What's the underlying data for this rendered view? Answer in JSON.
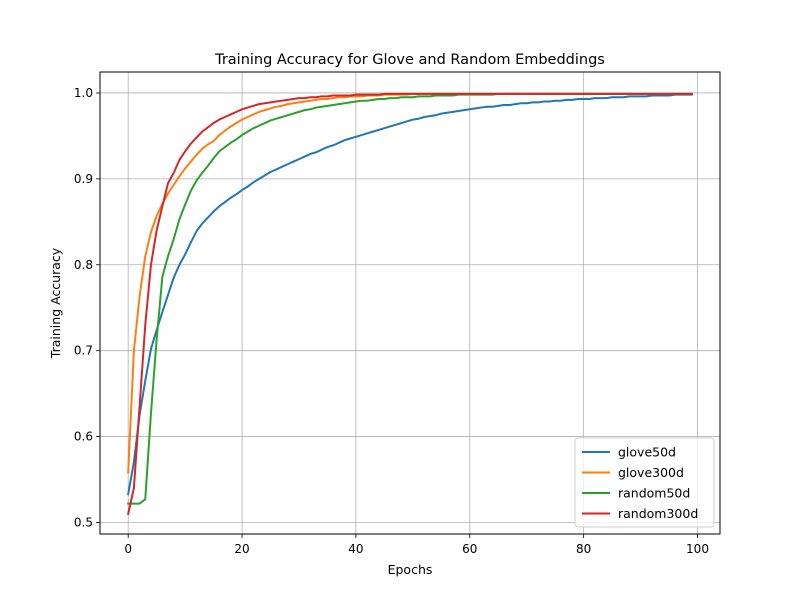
{
  "chart_data": {
    "type": "line",
    "title": "Training Accuracy for Glove and Random Embeddings",
    "xlabel": "Epochs",
    "ylabel": "Training Accuracy",
    "xlim": [
      -4.95,
      103.95
    ],
    "ylim": [
      0.4866,
      1.0244
    ],
    "xticks": [
      0,
      20,
      40,
      60,
      80,
      100
    ],
    "yticks": [
      0.5,
      0.6,
      0.7,
      0.8,
      0.9,
      1.0
    ],
    "xtick_labels": [
      "0",
      "20",
      "40",
      "60",
      "80",
      "100"
    ],
    "ytick_labels": [
      "0.5",
      "0.6",
      "0.7",
      "0.8",
      "0.9",
      "1.0"
    ],
    "grid": true,
    "legend_position": "lower-right",
    "x": [
      0,
      1,
      2,
      3,
      4,
      5,
      6,
      7,
      8,
      9,
      10,
      11,
      12,
      13,
      14,
      15,
      16,
      17,
      18,
      19,
      20,
      21,
      22,
      23,
      24,
      25,
      26,
      27,
      28,
      29,
      30,
      31,
      32,
      33,
      34,
      35,
      36,
      37,
      38,
      39,
      40,
      41,
      42,
      43,
      44,
      45,
      46,
      47,
      48,
      49,
      50,
      51,
      52,
      53,
      54,
      55,
      56,
      57,
      58,
      59,
      60,
      61,
      62,
      63,
      64,
      65,
      66,
      67,
      68,
      69,
      70,
      71,
      72,
      73,
      74,
      75,
      76,
      77,
      78,
      79,
      80,
      81,
      82,
      83,
      84,
      85,
      86,
      87,
      88,
      89,
      90,
      91,
      92,
      93,
      94,
      95,
      96,
      97,
      98,
      99
    ],
    "series": [
      {
        "name": "glove50d",
        "color": "#1f77b4",
        "values": [
          0.533,
          0.57,
          0.625,
          0.665,
          0.702,
          0.724,
          0.745,
          0.765,
          0.785,
          0.8,
          0.812,
          0.826,
          0.839,
          0.848,
          0.855,
          0.862,
          0.868,
          0.873,
          0.878,
          0.882,
          0.887,
          0.891,
          0.896,
          0.9,
          0.904,
          0.908,
          0.911,
          0.914,
          0.917,
          0.92,
          0.923,
          0.926,
          0.929,
          0.931,
          0.934,
          0.937,
          0.939,
          0.942,
          0.945,
          0.947,
          0.949,
          0.951,
          0.953,
          0.955,
          0.957,
          0.959,
          0.961,
          0.963,
          0.965,
          0.967,
          0.969,
          0.97,
          0.972,
          0.973,
          0.974,
          0.976,
          0.977,
          0.978,
          0.979,
          0.98,
          0.981,
          0.982,
          0.983,
          0.984,
          0.984,
          0.985,
          0.986,
          0.986,
          0.987,
          0.988,
          0.988,
          0.989,
          0.989,
          0.99,
          0.99,
          0.991,
          0.991,
          0.992,
          0.992,
          0.993,
          0.993,
          0.993,
          0.994,
          0.994,
          0.994,
          0.995,
          0.995,
          0.995,
          0.996,
          0.996,
          0.996,
          0.996,
          0.997,
          0.997,
          0.997,
          0.997,
          0.998,
          0.998,
          0.998,
          0.998
        ]
      },
      {
        "name": "glove300d",
        "color": "#ff7f0e",
        "values": [
          0.558,
          0.7,
          0.763,
          0.81,
          0.838,
          0.857,
          0.871,
          0.883,
          0.893,
          0.903,
          0.912,
          0.92,
          0.928,
          0.935,
          0.94,
          0.944,
          0.951,
          0.956,
          0.961,
          0.965,
          0.969,
          0.972,
          0.975,
          0.978,
          0.98,
          0.982,
          0.984,
          0.985,
          0.987,
          0.988,
          0.989,
          0.99,
          0.991,
          0.992,
          0.993,
          0.993,
          0.994,
          0.995,
          0.995,
          0.996,
          0.996,
          0.996,
          0.997,
          0.997,
          0.997,
          0.998,
          0.998,
          0.998,
          0.998,
          0.998,
          0.999,
          0.999,
          0.999,
          0.999,
          0.999,
          0.999,
          0.999,
          0.999,
          0.999,
          0.999,
          0.999,
          0.999,
          0.999,
          0.999,
          0.999,
          0.999,
          0.999,
          0.999,
          0.999,
          0.999,
          0.999,
          0.999,
          0.999,
          0.999,
          0.999,
          0.999,
          0.999,
          0.999,
          0.999,
          0.999,
          0.999,
          0.999,
          0.999,
          0.999,
          0.999,
          0.999,
          0.999,
          0.999,
          0.999,
          0.999,
          0.999,
          0.999,
          0.999,
          0.999,
          0.999,
          0.999,
          0.999,
          0.999,
          0.999,
          0.999
        ]
      },
      {
        "name": "random50d",
        "color": "#2ca02c",
        "values": [
          0.522,
          0.522,
          0.522,
          0.527,
          0.627,
          0.713,
          0.786,
          0.81,
          0.83,
          0.853,
          0.87,
          0.886,
          0.898,
          0.907,
          0.915,
          0.924,
          0.932,
          0.937,
          0.942,
          0.946,
          0.951,
          0.955,
          0.959,
          0.962,
          0.965,
          0.968,
          0.97,
          0.972,
          0.974,
          0.976,
          0.978,
          0.98,
          0.981,
          0.983,
          0.984,
          0.985,
          0.986,
          0.987,
          0.988,
          0.989,
          0.99,
          0.991,
          0.991,
          0.992,
          0.993,
          0.993,
          0.994,
          0.994,
          0.995,
          0.995,
          0.995,
          0.996,
          0.996,
          0.996,
          0.997,
          0.997,
          0.997,
          0.997,
          0.998,
          0.998,
          0.998,
          0.998,
          0.998,
          0.998,
          0.998,
          0.999,
          0.999,
          0.999,
          0.999,
          0.999,
          0.999,
          0.999,
          0.999,
          0.999,
          0.999,
          0.999,
          0.999,
          0.999,
          0.999,
          0.999,
          0.999,
          0.999,
          0.999,
          0.999,
          0.999,
          0.999,
          0.999,
          0.999,
          0.999,
          0.999,
          0.999,
          0.999,
          0.999,
          0.999,
          0.999,
          0.999,
          0.999,
          0.999,
          0.999,
          0.999
        ]
      },
      {
        "name": "random300d",
        "color": "#d62728",
        "values": [
          0.51,
          0.54,
          0.635,
          0.73,
          0.8,
          0.84,
          0.868,
          0.895,
          0.907,
          0.922,
          0.932,
          0.941,
          0.948,
          0.955,
          0.96,
          0.965,
          0.969,
          0.972,
          0.975,
          0.978,
          0.981,
          0.983,
          0.985,
          0.987,
          0.988,
          0.989,
          0.99,
          0.991,
          0.992,
          0.993,
          0.994,
          0.994,
          0.995,
          0.995,
          0.996,
          0.996,
          0.997,
          0.997,
          0.997,
          0.997,
          0.998,
          0.998,
          0.998,
          0.998,
          0.998,
          0.999,
          0.999,
          0.999,
          0.999,
          0.999,
          0.999,
          0.999,
          0.999,
          0.999,
          0.999,
          0.999,
          0.999,
          0.999,
          0.999,
          0.999,
          0.999,
          0.999,
          0.999,
          0.999,
          0.999,
          0.999,
          0.999,
          0.999,
          0.999,
          0.999,
          0.999,
          0.999,
          0.999,
          0.999,
          0.999,
          0.999,
          0.999,
          0.999,
          0.999,
          0.999,
          0.999,
          0.999,
          0.999,
          0.999,
          0.999,
          0.999,
          0.999,
          0.999,
          0.999,
          0.999,
          0.999,
          0.999,
          0.999,
          0.999,
          0.999,
          0.999,
          0.999,
          0.999,
          0.999,
          0.999
        ]
      }
    ]
  }
}
